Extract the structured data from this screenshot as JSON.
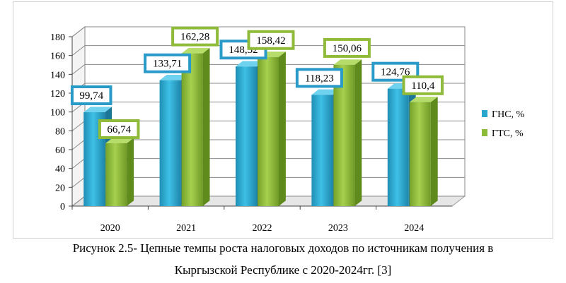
{
  "chart_data": {
    "type": "bar",
    "categories": [
      "2020",
      "2021",
      "2022",
      "2023",
      "2024"
    ],
    "series": [
      {
        "name": "ГНС, %",
        "values": [
          99.74,
          133.71,
          148.32,
          118.23,
          124.76
        ],
        "labels": [
          "99,74",
          "133,71",
          "148,32",
          "118,23",
          "124,76"
        ],
        "color": "#29a6cc",
        "border_color": "#2a9bc8"
      },
      {
        "name": "ГТС, %",
        "values": [
          66.74,
          162.28,
          158.42,
          150.06,
          110.4
        ],
        "labels": [
          "66,74",
          "162,28",
          "158,42",
          "150,06",
          "110,4"
        ],
        "color": "#8cbb37",
        "border_color": "#8fba3a"
      }
    ],
    "y_ticks": [
      "0",
      "20",
      "40",
      "60",
      "80",
      "100",
      "120",
      "140",
      "160",
      "180"
    ],
    "ylim": [
      0,
      180
    ],
    "grid": true,
    "legend_position": "right"
  },
  "caption": {
    "line1": "Рисунок 2.5- Цепные темпы роста налоговых доходов по источникам получения в",
    "line2": "Кыргызской Республике с 2020-2024гг. [3]"
  }
}
